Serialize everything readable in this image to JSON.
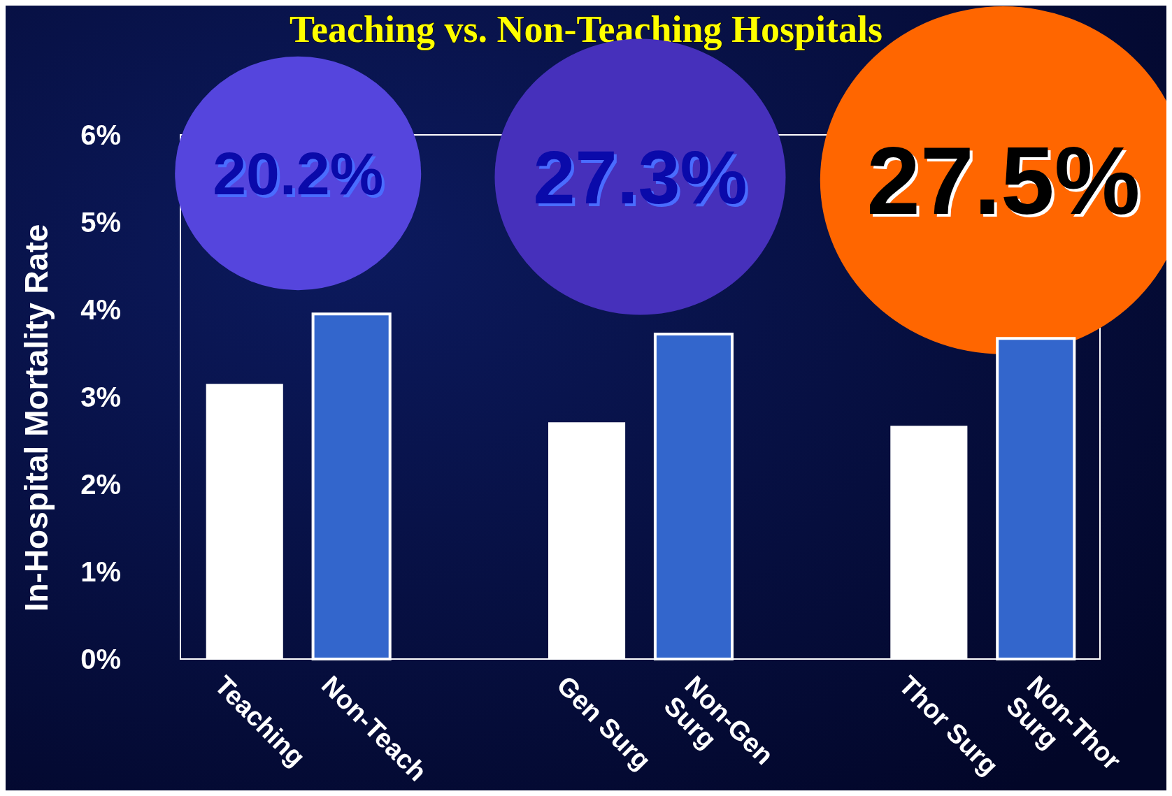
{
  "chart_data": {
    "type": "bar",
    "title": "Teaching vs. Non-Teaching Hospitals",
    "ylabel": "In-Hospital Mortality Rate",
    "categories": [
      "Teaching",
      "Non-Teach",
      "Gen Surg",
      "Non-Gen Surg",
      "Thor Surg",
      "Non-Thor Surg"
    ],
    "values": [
      3.15,
      3.95,
      2.71,
      3.72,
      2.67,
      3.67
    ],
    "colors": [
      "#ffffff",
      "#3366cc",
      "#ffffff",
      "#3366cc",
      "#ffffff",
      "#3366cc"
    ],
    "ylim": [
      0,
      6
    ],
    "yticks": [
      {
        "value": 0,
        "label": "0%"
      },
      {
        "value": 1,
        "label": "1%"
      },
      {
        "value": 2,
        "label": "2%"
      },
      {
        "value": 3,
        "label": "3%"
      },
      {
        "value": 4,
        "label": "4%"
      },
      {
        "value": 5,
        "label": "5%"
      },
      {
        "value": 6,
        "label": "6%"
      }
    ],
    "annotations": [
      "20.2%",
      "27.3%",
      "27.5%"
    ],
    "grid": false
  }
}
